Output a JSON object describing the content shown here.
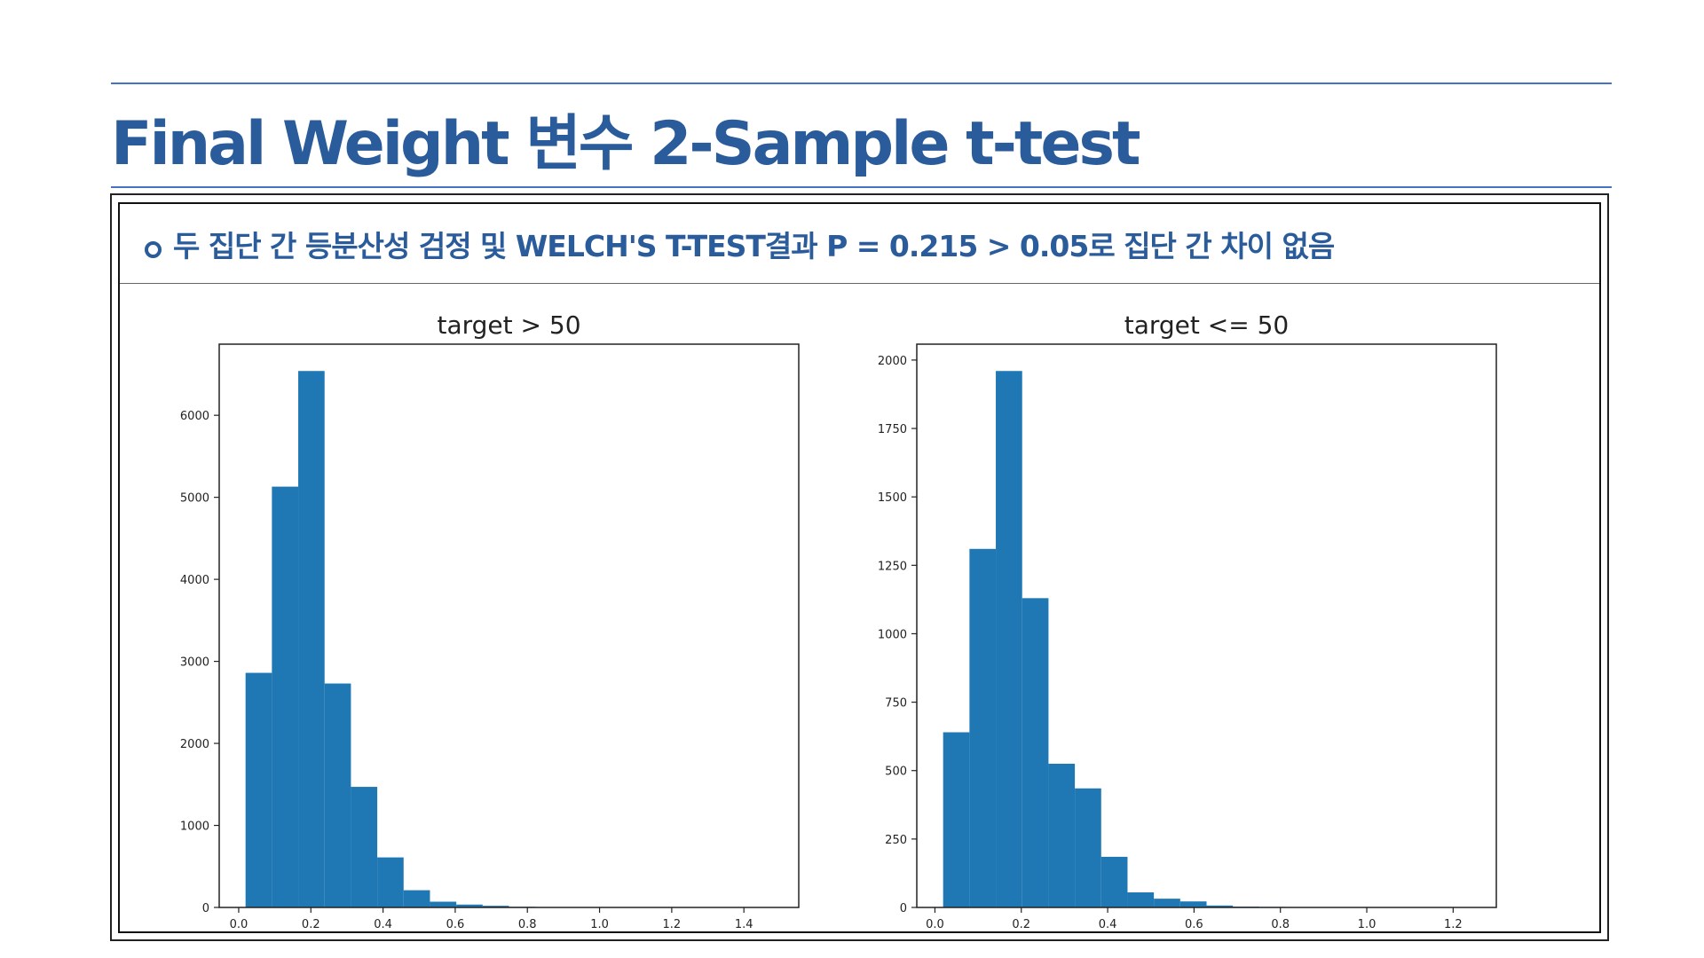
{
  "slide": {
    "title": "Final Weight 변수 2-Sample t-test",
    "summary": "두 집단 간 등분산성 검정 및 WELCH'S T-TEST결과 P = 0.215 > 0.05로 집단 간 차이 없음"
  },
  "colors": {
    "title": "#2a5b9a",
    "rule": "#4472c4",
    "bar": "#1f77b4"
  },
  "chart_data": [
    {
      "type": "bar",
      "title": "target > 50",
      "xlabel": "",
      "ylabel": "",
      "bin_edges": [
        0.019,
        0.092,
        0.165,
        0.238,
        0.311,
        0.384,
        0.457,
        0.53,
        0.603,
        0.676,
        0.749,
        0.822,
        0.895,
        0.968,
        1.041,
        1.114,
        1.187,
        1.26,
        1.333,
        1.406,
        1.479
      ],
      "values": [
        2860,
        5130,
        6540,
        2730,
        1470,
        610,
        210,
        70,
        35,
        20,
        8,
        4,
        2,
        1,
        1,
        1,
        0,
        0,
        0,
        1
      ],
      "xlim": [
        -0.054,
        1.552
      ],
      "ylim": [
        0,
        6867
      ],
      "xticks": [
        0.0,
        0.2,
        0.4,
        0.6,
        0.8,
        1.0,
        1.2,
        1.4
      ],
      "xtick_labels": [
        "0.0",
        "0.2",
        "0.4",
        "0.6",
        "0.8",
        "1.0",
        "1.2",
        "1.4"
      ],
      "yticks": [
        0,
        1000,
        2000,
        3000,
        4000,
        5000,
        6000
      ],
      "ytick_labels": [
        "0",
        "1000",
        "2000",
        "3000",
        "4000",
        "5000",
        "6000"
      ],
      "grid": false,
      "legend": "none"
    },
    {
      "type": "bar",
      "title": "target <= 50",
      "xlabel": "",
      "ylabel": "",
      "bin_edges": [
        0.019,
        0.08,
        0.141,
        0.202,
        0.263,
        0.324,
        0.385,
        0.446,
        0.507,
        0.568,
        0.629,
        0.69,
        0.751,
        0.812,
        0.873,
        0.934,
        0.995,
        1.056,
        1.117,
        1.178,
        1.239
      ],
      "values": [
        640,
        1310,
        1960,
        1130,
        525,
        435,
        185,
        55,
        32,
        22,
        7,
        3,
        2,
        1,
        1,
        0,
        0,
        0,
        0,
        1
      ],
      "xlim": [
        -0.042,
        1.3
      ],
      "ylim": [
        0,
        2058
      ],
      "xticks": [
        0.0,
        0.2,
        0.4,
        0.6,
        0.8,
        1.0,
        1.2
      ],
      "xtick_labels": [
        "0.0",
        "0.2",
        "0.4",
        "0.6",
        "0.8",
        "1.0",
        "1.2"
      ],
      "yticks": [
        0,
        250,
        500,
        750,
        1000,
        1250,
        1500,
        1750,
        2000
      ],
      "ytick_labels": [
        "0",
        "250",
        "500",
        "750",
        "1000",
        "1250",
        "1500",
        "1750",
        "2000"
      ],
      "grid": false,
      "legend": "none"
    }
  ]
}
